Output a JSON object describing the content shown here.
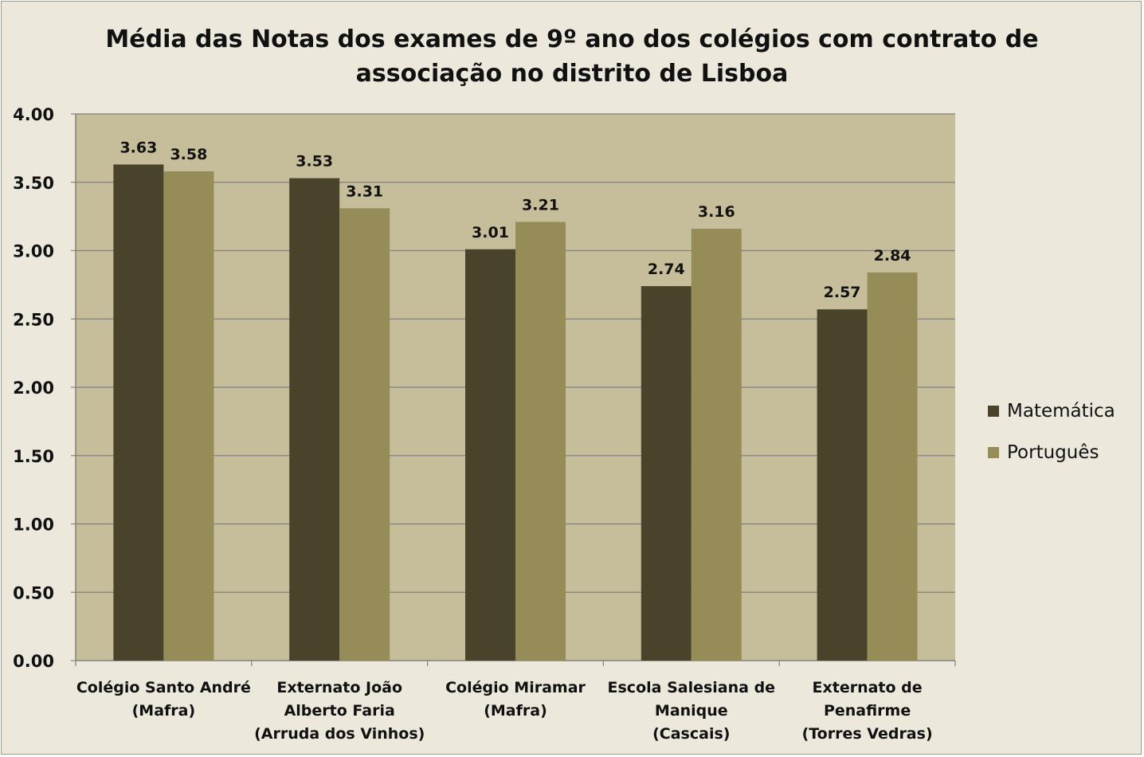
{
  "chart_data": {
    "type": "bar",
    "title": [
      "Média das Notas dos exames de 9º ano dos colégios com contrato de",
      "associação no distrito de Lisboa"
    ],
    "categories": [
      [
        "Colégio Santo André",
        "(Mafra)"
      ],
      [
        "Externato João",
        "Alberto Faria",
        "(Arruda dos Vinhos)"
      ],
      [
        "Colégio Miramar",
        "(Mafra)"
      ],
      [
        "Escola Salesiana de",
        "Manique",
        "(Cascais)"
      ],
      [
        "Externato de",
        "Penafirme",
        "(Torres Vedras)"
      ]
    ],
    "series": [
      {
        "name": "Matemática",
        "color": "#4a432b",
        "values": [
          3.63,
          3.53,
          3.01,
          2.74,
          2.57
        ]
      },
      {
        "name": "Português",
        "color": "#958c57",
        "values": [
          3.58,
          3.31,
          3.21,
          3.16,
          2.84
        ]
      }
    ],
    "ylim": [
      0,
      4
    ],
    "yticks": [
      "0.00",
      "0.50",
      "1.00",
      "1.50",
      "2.00",
      "2.50",
      "3.00",
      "3.50",
      "4.00"
    ],
    "ytick_values": [
      0,
      0.5,
      1,
      1.5,
      2,
      2.5,
      3,
      3.5,
      4
    ],
    "xlabel": "",
    "ylabel": "",
    "grid": true,
    "legend_position": "right",
    "plot_background": "#c6be9a"
  }
}
